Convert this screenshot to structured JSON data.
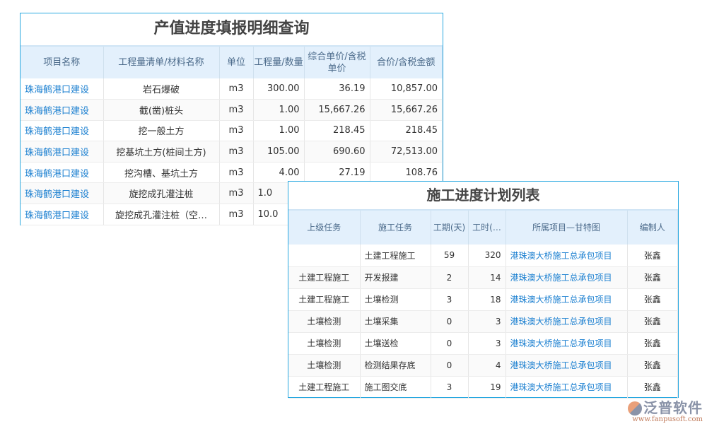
{
  "panel1": {
    "title": "产值进度填报明细查询",
    "headers": [
      "项目名称",
      "工程量清单/材料名称",
      "单位",
      "工程量/数量",
      "综合单价/含税单价",
      "合价/含税金额"
    ],
    "rows": [
      [
        "珠海鹤港口建设",
        "岩石爆破",
        "m3",
        "300.00",
        "36.19",
        "10,857.00"
      ],
      [
        "珠海鹤港口建设",
        "截(凿)桩头",
        "m3",
        "1.00",
        "15,667.26",
        "15,667.26"
      ],
      [
        "珠海鹤港口建设",
        "挖一般土方",
        "m3",
        "1.00",
        "218.45",
        "218.45"
      ],
      [
        "珠海鹤港口建设",
        "挖基坑土方(桩间土方)",
        "m3",
        "105.00",
        "690.60",
        "72,513.00"
      ],
      [
        "珠海鹤港口建设",
        "挖沟槽、基坑土方",
        "m3",
        "4.00",
        "27.19",
        "108.76"
      ],
      [
        "珠海鹤港口建设",
        "旋挖成孔灌注桩",
        "m3",
        "1.0",
        "",
        ""
      ],
      [
        "珠海鹤港口建设",
        "旋挖成孔灌注桩（空…",
        "m3",
        "10.0",
        "",
        ""
      ]
    ]
  },
  "panel2": {
    "title": "施工进度计划列表",
    "headers": [
      "上级任务",
      "施工任务",
      "工期(天)",
      "工时(…",
      "所属项目—甘特图",
      "编制人"
    ],
    "rows": [
      [
        "",
        "土建工程施工",
        "59",
        "320",
        "港珠澳大桥施工总承包项目",
        "张鑫"
      ],
      [
        "土建工程施工",
        "开发报建",
        "2",
        "14",
        "港珠澳大桥施工总承包项目",
        "张鑫"
      ],
      [
        "土建工程施工",
        "土壤检测",
        "3",
        "18",
        "港珠澳大桥施工总承包项目",
        "张鑫"
      ],
      [
        "土壤检测",
        "土壤采集",
        "0",
        "3",
        "港珠澳大桥施工总承包项目",
        "张鑫"
      ],
      [
        "土壤检测",
        "土壤送检",
        "0",
        "3",
        "港珠澳大桥施工总承包项目",
        "张鑫"
      ],
      [
        "土壤检测",
        "检测结果存底",
        "0",
        "4",
        "港珠澳大桥施工总承包项目",
        "张鑫"
      ],
      [
        "土建工程施工",
        "施工图交底",
        "3",
        "19",
        "港珠澳大桥施工总承包项目",
        "张鑫"
      ]
    ]
  },
  "logo": {
    "text": "泛普软件",
    "url": "www.fanpusoft.com"
  }
}
